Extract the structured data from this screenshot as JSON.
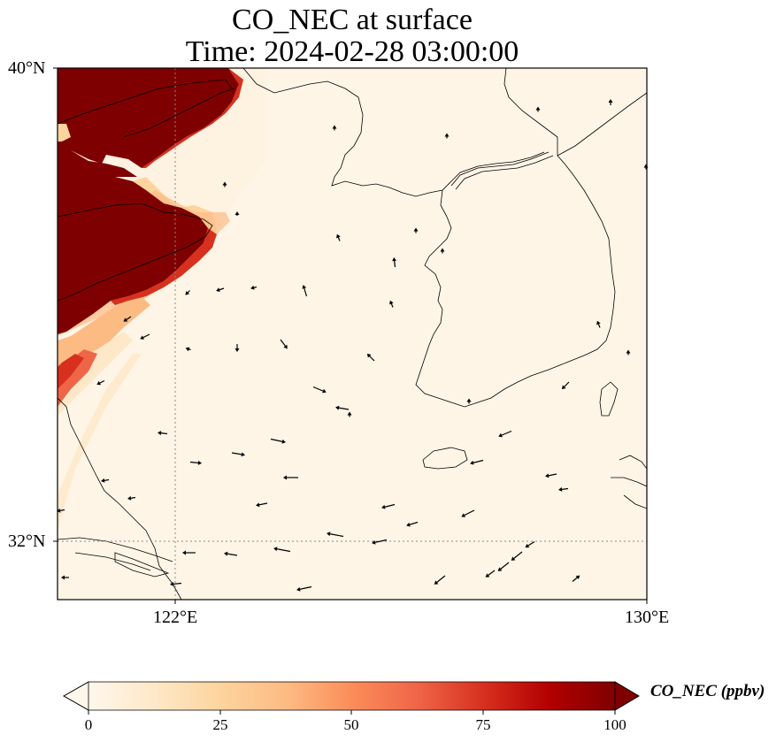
{
  "title": {
    "line1": "CO_NEC at surface",
    "line2": "Time: 2024-02-28 03:00:00"
  },
  "axes": {
    "lat_ticks": [
      {
        "value": 40,
        "label": "40°N"
      },
      {
        "value": 32,
        "label": "32°N"
      }
    ],
    "lon_ticks": [
      {
        "value": 122,
        "label": "122°E"
      },
      {
        "value": 130,
        "label": "130°E"
      }
    ],
    "lon_range": [
      120,
      130
    ],
    "lat_range": [
      31,
      40
    ],
    "gridlines": "dotted at 122°E and 32°N"
  },
  "colorbar": {
    "label": "CO_NEC (ppbv)",
    "ticks": [
      "0",
      "25",
      "50",
      "75",
      "100"
    ],
    "range": [
      0,
      100
    ],
    "colormap": "OrRd",
    "extend": "both",
    "colors": [
      "#fff7ec",
      "#fee8c8",
      "#fdd49e",
      "#fdbb84",
      "#fc8d59",
      "#ef6548",
      "#d7301f",
      "#b30000",
      "#7f0000"
    ]
  },
  "chart_data": {
    "type": "heatmap",
    "variable": "CO_NEC",
    "units": "ppbv",
    "level": "surface",
    "time": "2024-02-28 03:00:00",
    "description_regions": [
      {
        "region": "NE China / Liaoning & Shandong coast",
        "value_ppbv": ">100"
      },
      {
        "region": "Yellow Sea west edge plume",
        "value_ppbv": "20-100"
      },
      {
        "region": "Yellow Sea, Korea, East China Sea",
        "value_ppbv": "0-3"
      }
    ],
    "wind_vectors": "westerly/northwesterly arrows over sea"
  }
}
